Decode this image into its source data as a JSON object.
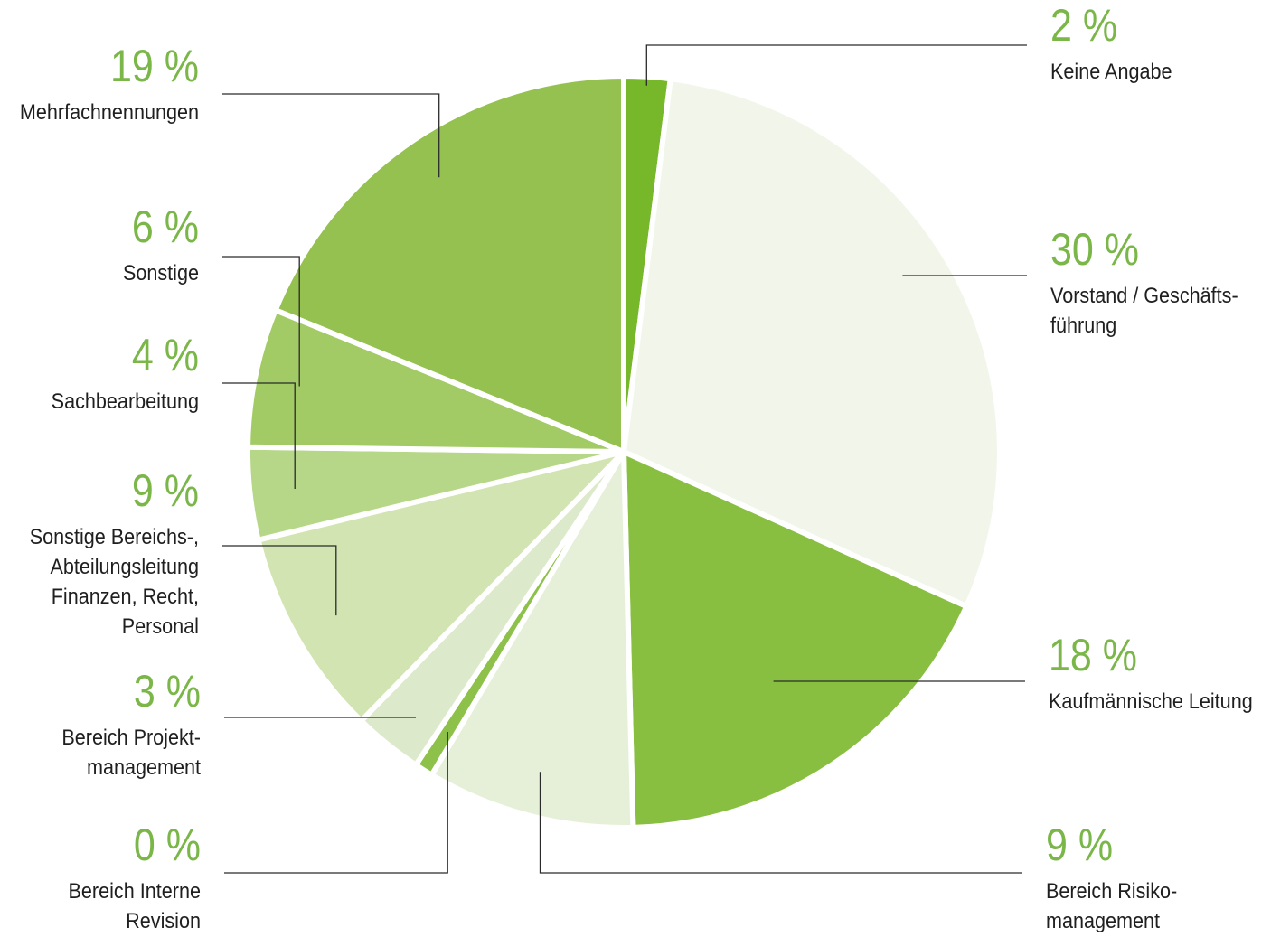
{
  "chart_data": {
    "type": "pie",
    "slices": [
      {
        "value": 2,
        "value_label": "2 %",
        "label_lines": [
          "Keine Angabe"
        ],
        "color": "#76b82a"
      },
      {
        "value": 30,
        "value_label": "30 %",
        "label_lines": [
          "Vorstand / Geschäfts-",
          "führung"
        ],
        "color": "#f2f6ea"
      },
      {
        "value": 18,
        "value_label": "18 %",
        "label_lines": [
          "Kaufmännische Leitung"
        ],
        "color": "#88bf41"
      },
      {
        "value": 9,
        "value_label": "9 %",
        "label_lines": [
          "Bereich Risiko-",
          "management"
        ],
        "color": "#e6f0d9"
      },
      {
        "value": 0,
        "value_label": "0 %",
        "label_lines": [
          "Bereich Interne",
          "Revision"
        ],
        "color": "#8dc149"
      },
      {
        "value": 3,
        "value_label": "3 %",
        "label_lines": [
          "Bereich Projekt-",
          "management"
        ],
        "color": "#dde9cb"
      },
      {
        "value": 9,
        "value_label": "9 %",
        "label_lines": [
          "Sonstige Bereichs-,",
          "Abteilungsleitung",
          "Finanzen, Recht,",
          "Personal"
        ],
        "color": "#d2e4b1"
      },
      {
        "value": 4,
        "value_label": "4 %",
        "label_lines": [
          "Sachbearbeitung"
        ],
        "color": "#b6d787"
      },
      {
        "value": 6,
        "value_label": "6 %",
        "label_lines": [
          "Sonstige"
        ],
        "color": "#a2cb66"
      },
      {
        "value": 19,
        "value_label": "19 %",
        "label_lines": [
          "Mehrfachnennungen"
        ],
        "color": "#95c150"
      }
    ]
  }
}
